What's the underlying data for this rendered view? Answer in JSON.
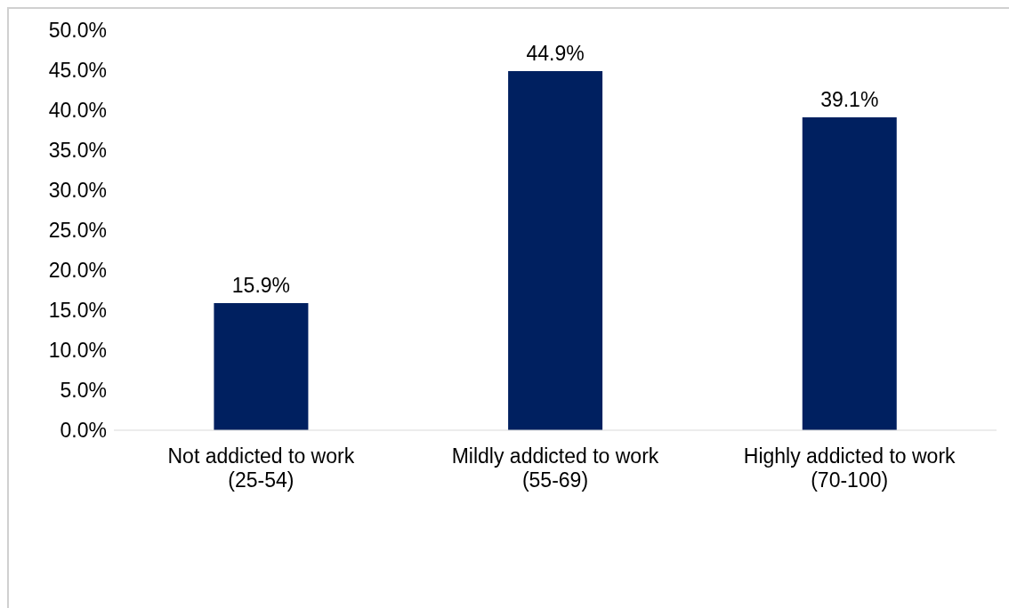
{
  "chart_data": {
    "type": "bar",
    "categories": [
      "Not addicted to work\n(25-54)",
      "Mildly addicted to work\n(55-69)",
      "Highly addicted to work\n(70-100)"
    ],
    "values": [
      15.9,
      44.9,
      39.1
    ],
    "color": "#002060",
    "ylim": [
      0,
      50
    ],
    "yticks": [
      {
        "value": 0,
        "label": "0.0%"
      },
      {
        "value": 5,
        "label": "5.0%"
      },
      {
        "value": 10,
        "label": "10.0%"
      },
      {
        "value": 15,
        "label": "15.0%"
      },
      {
        "value": 20,
        "label": "20.0%"
      },
      {
        "value": 25,
        "label": "25.0%"
      },
      {
        "value": 30,
        "label": "30.0%"
      },
      {
        "value": 35,
        "label": "35.0%"
      },
      {
        "value": 40,
        "label": "40.0%"
      },
      {
        "value": 45,
        "label": "45.0%"
      },
      {
        "value": 50,
        "label": "50.0%"
      }
    ],
    "value_labels": [
      "15.9%",
      "44.9%",
      "39.1%"
    ],
    "grid": false
  }
}
